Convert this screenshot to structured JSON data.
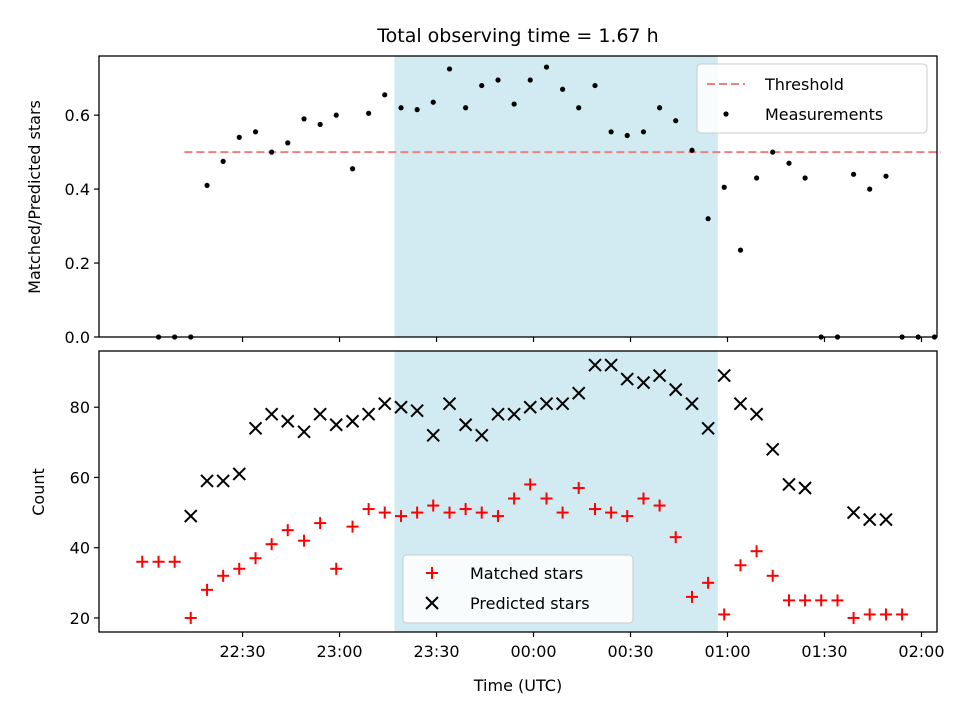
{
  "chart_data": {
    "title": "Total observing time = 1.67 h",
    "xlabel": "Time (UTC)",
    "x_ticks": [
      "22:30",
      "23:00",
      "23:30",
      "00:00",
      "00:30",
      "01:00",
      "01:30",
      "02:00"
    ],
    "x_tick_hours": [
      22.5,
      23.0,
      23.5,
      24.0,
      24.5,
      25.0,
      25.5,
      26.0
    ],
    "xlim": [
      21.76,
      26.08
    ],
    "observing_window": {
      "start": "23:17",
      "end": "00:57",
      "start_h": 23.283,
      "end_h": 24.95,
      "color": "#add8e6"
    },
    "time_hours": [
      21.983,
      22.067,
      22.15,
      22.233,
      22.317,
      22.4,
      22.483,
      22.567,
      22.65,
      22.733,
      22.817,
      22.9,
      22.983,
      23.067,
      23.15,
      23.233,
      23.317,
      23.4,
      23.483,
      23.567,
      23.65,
      23.733,
      23.817,
      23.9,
      23.983,
      24.067,
      24.15,
      24.233,
      24.317,
      24.4,
      24.483,
      24.567,
      24.65,
      24.733,
      24.817,
      24.9,
      24.983,
      25.067,
      25.15,
      25.233,
      25.317,
      25.4,
      25.483,
      25.567,
      25.65,
      25.733,
      25.817,
      25.9
    ],
    "panels": [
      {
        "type": "scatter",
        "ylabel": "Matched/Predicted stars",
        "ylim": [
          0,
          0.76
        ],
        "yticks": [
          "0.0",
          "0.2",
          "0.4",
          "0.6"
        ],
        "ytick_values": [
          0.0,
          0.2,
          0.4,
          0.6
        ],
        "threshold": {
          "name": "Threshold",
          "value": 0.5,
          "x_range": [
            22.2,
            26.1
          ],
          "color": "#f08080",
          "style": "dashed"
        },
        "series": [
          {
            "name": "Measurements",
            "color": "#000000",
            "marker": "dot",
            "x": [
              22.067,
              22.15,
              22.233,
              22.317,
              22.4,
              22.483,
              22.567,
              22.65,
              22.733,
              22.817,
              22.9,
              22.983,
              23.067,
              23.15,
              23.233,
              23.317,
              23.4,
              23.483,
              23.567,
              23.65,
              23.733,
              23.817,
              23.9,
              23.983,
              24.067,
              24.15,
              24.233,
              24.317,
              24.4,
              24.483,
              24.567,
              24.65,
              24.733,
              24.817,
              24.9,
              24.983,
              25.067,
              25.15,
              25.233,
              25.317,
              25.4,
              25.483,
              25.567,
              25.65,
              25.733,
              25.817,
              25.9,
              25.983,
              26.067
            ],
            "values": [
              0.0,
              0.0,
              0.0,
              0.41,
              0.475,
              0.54,
              0.555,
              0.5,
              0.525,
              0.59,
              0.575,
              0.6,
              0.455,
              0.605,
              0.655,
              0.62,
              0.615,
              0.635,
              0.725,
              0.62,
              0.68,
              0.695,
              0.63,
              0.695,
              0.73,
              0.67,
              0.62,
              0.68,
              0.555,
              0.545,
              0.555,
              0.62,
              0.585,
              0.505,
              0.32,
              0.405,
              0.235,
              0.43,
              0.5,
              0.47,
              0.43,
              0.0,
              0.0,
              0.44,
              0.4,
              0.435,
              0.0,
              0.0,
              0.0
            ]
          }
        ],
        "legend": {
          "placement": "upper right",
          "entries": [
            "Threshold",
            "Measurements"
          ]
        }
      },
      {
        "type": "scatter",
        "ylabel": "Count",
        "ylim": [
          16,
          96
        ],
        "yticks": [
          "20",
          "40",
          "60",
          "80"
        ],
        "ytick_values": [
          20,
          40,
          60,
          80
        ],
        "series": [
          {
            "name": "Matched stars",
            "color": "#ff0000",
            "marker": "plus",
            "x": [
              21.983,
              22.067,
              22.15,
              22.233,
              22.317,
              22.4,
              22.483,
              22.567,
              22.65,
              22.733,
              22.817,
              22.9,
              22.983,
              23.067,
              23.15,
              23.233,
              23.317,
              23.4,
              23.483,
              23.567,
              23.65,
              23.733,
              23.817,
              23.9,
              23.983,
              24.067,
              24.15,
              24.233,
              24.317,
              24.4,
              24.483,
              24.567,
              24.65,
              24.733,
              24.817,
              24.9,
              24.983,
              25.067,
              25.15,
              25.233,
              25.317,
              25.4,
              25.483,
              25.567,
              25.65,
              25.733,
              25.817,
              25.9
            ],
            "values": [
              36,
              36,
              36,
              20,
              28,
              32,
              34,
              37,
              41,
              45,
              42,
              47,
              34,
              46,
              51,
              50,
              49,
              50,
              52,
              50,
              51,
              50,
              49,
              54,
              58,
              54,
              50,
              57,
              51,
              50,
              49,
              54,
              52,
              43,
              26,
              30,
              21,
              35,
              39,
              32,
              25,
              25,
              25,
              25,
              20,
              21,
              21,
              21
            ]
          },
          {
            "name": "Predicted stars",
            "color": "#000000",
            "marker": "x",
            "x": [
              22.233,
              22.317,
              22.4,
              22.483,
              22.567,
              22.65,
              22.733,
              22.817,
              22.9,
              22.983,
              23.067,
              23.15,
              23.233,
              23.317,
              23.4,
              23.483,
              23.567,
              23.65,
              23.733,
              23.817,
              23.9,
              23.983,
              24.067,
              24.15,
              24.233,
              24.317,
              24.4,
              24.483,
              24.567,
              24.65,
              24.733,
              24.817,
              24.9,
              24.983,
              25.067,
              25.15,
              25.233,
              25.317,
              25.4,
              25.65,
              25.733,
              25.817
            ],
            "values": [
              49,
              59,
              59,
              61,
              74,
              78,
              76,
              73,
              78,
              75,
              76,
              78,
              81,
              80,
              79,
              72,
              81,
              75,
              72,
              78,
              78,
              80,
              81,
              81,
              84,
              92,
              92,
              88,
              87,
              89,
              85,
              81,
              74,
              89,
              81,
              78,
              68,
              58,
              57,
              50,
              48,
              48
            ]
          }
        ],
        "legend": {
          "placement": "lower center",
          "entries": [
            "Matched stars",
            "Predicted stars"
          ]
        }
      }
    ]
  }
}
